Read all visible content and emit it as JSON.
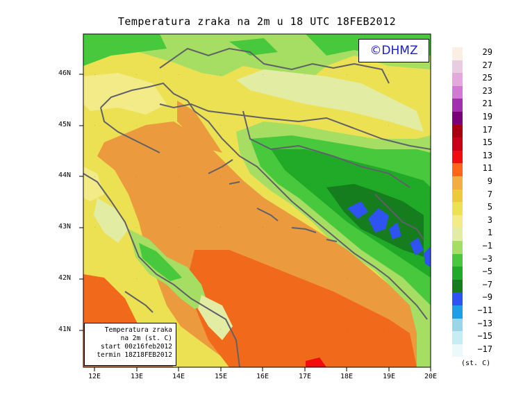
{
  "title": "Temperatura zraka na 2m u 18 UTC 18FEB2012",
  "copyright": "©DHMZ",
  "info_box": {
    "line1": "Temperatura zraka",
    "line2": "na 2m (st. C)",
    "line3": "start 00z16feb2012",
    "line4": "termin 18Z18FEB2012"
  },
  "lat_labels": [
    "46N",
    "45N",
    "44N",
    "43N",
    "42N",
    "41N"
  ],
  "lon_labels": [
    "12E",
    "13E",
    "14E",
    "15E",
    "16E",
    "17E",
    "18E",
    "19E",
    "20E"
  ],
  "legend": {
    "labels": [
      "29",
      "27",
      "25",
      "23",
      "21",
      "19",
      "17",
      "15",
      "13",
      "11",
      "9",
      "7",
      "5",
      "3",
      "1",
      "−1",
      "−3",
      "−5",
      "−7",
      "−9",
      "−11",
      "−13",
      "−15",
      "−17"
    ],
    "unit": "(st. C)",
    "colors": [
      "#fbeee3",
      "#e8cde0",
      "#e3a9dc",
      "#d27ad3",
      "#a12fb0",
      "#7a007a",
      "#a80012",
      "#c8001a",
      "#f20c0c",
      "#ff6619",
      "#f4ad42",
      "#edc93c",
      "#ece053",
      "#f3eb88",
      "#e2eda3",
      "#a5de62",
      "#48c83c",
      "#20aa28",
      "#157d1d",
      "#2f53f0",
      "#1e9ee6",
      "#9ad6e6",
      "#c8ecf4",
      "#ebf9fb"
    ]
  },
  "colors": {
    "copyright_text": "#1a1ad6",
    "coastline": "#606068",
    "sea_warm": "#f16a1c",
    "sea_mild": "#eb9a3e",
    "land_mild": "#ece053",
    "land_cold": "#20aa28"
  }
}
